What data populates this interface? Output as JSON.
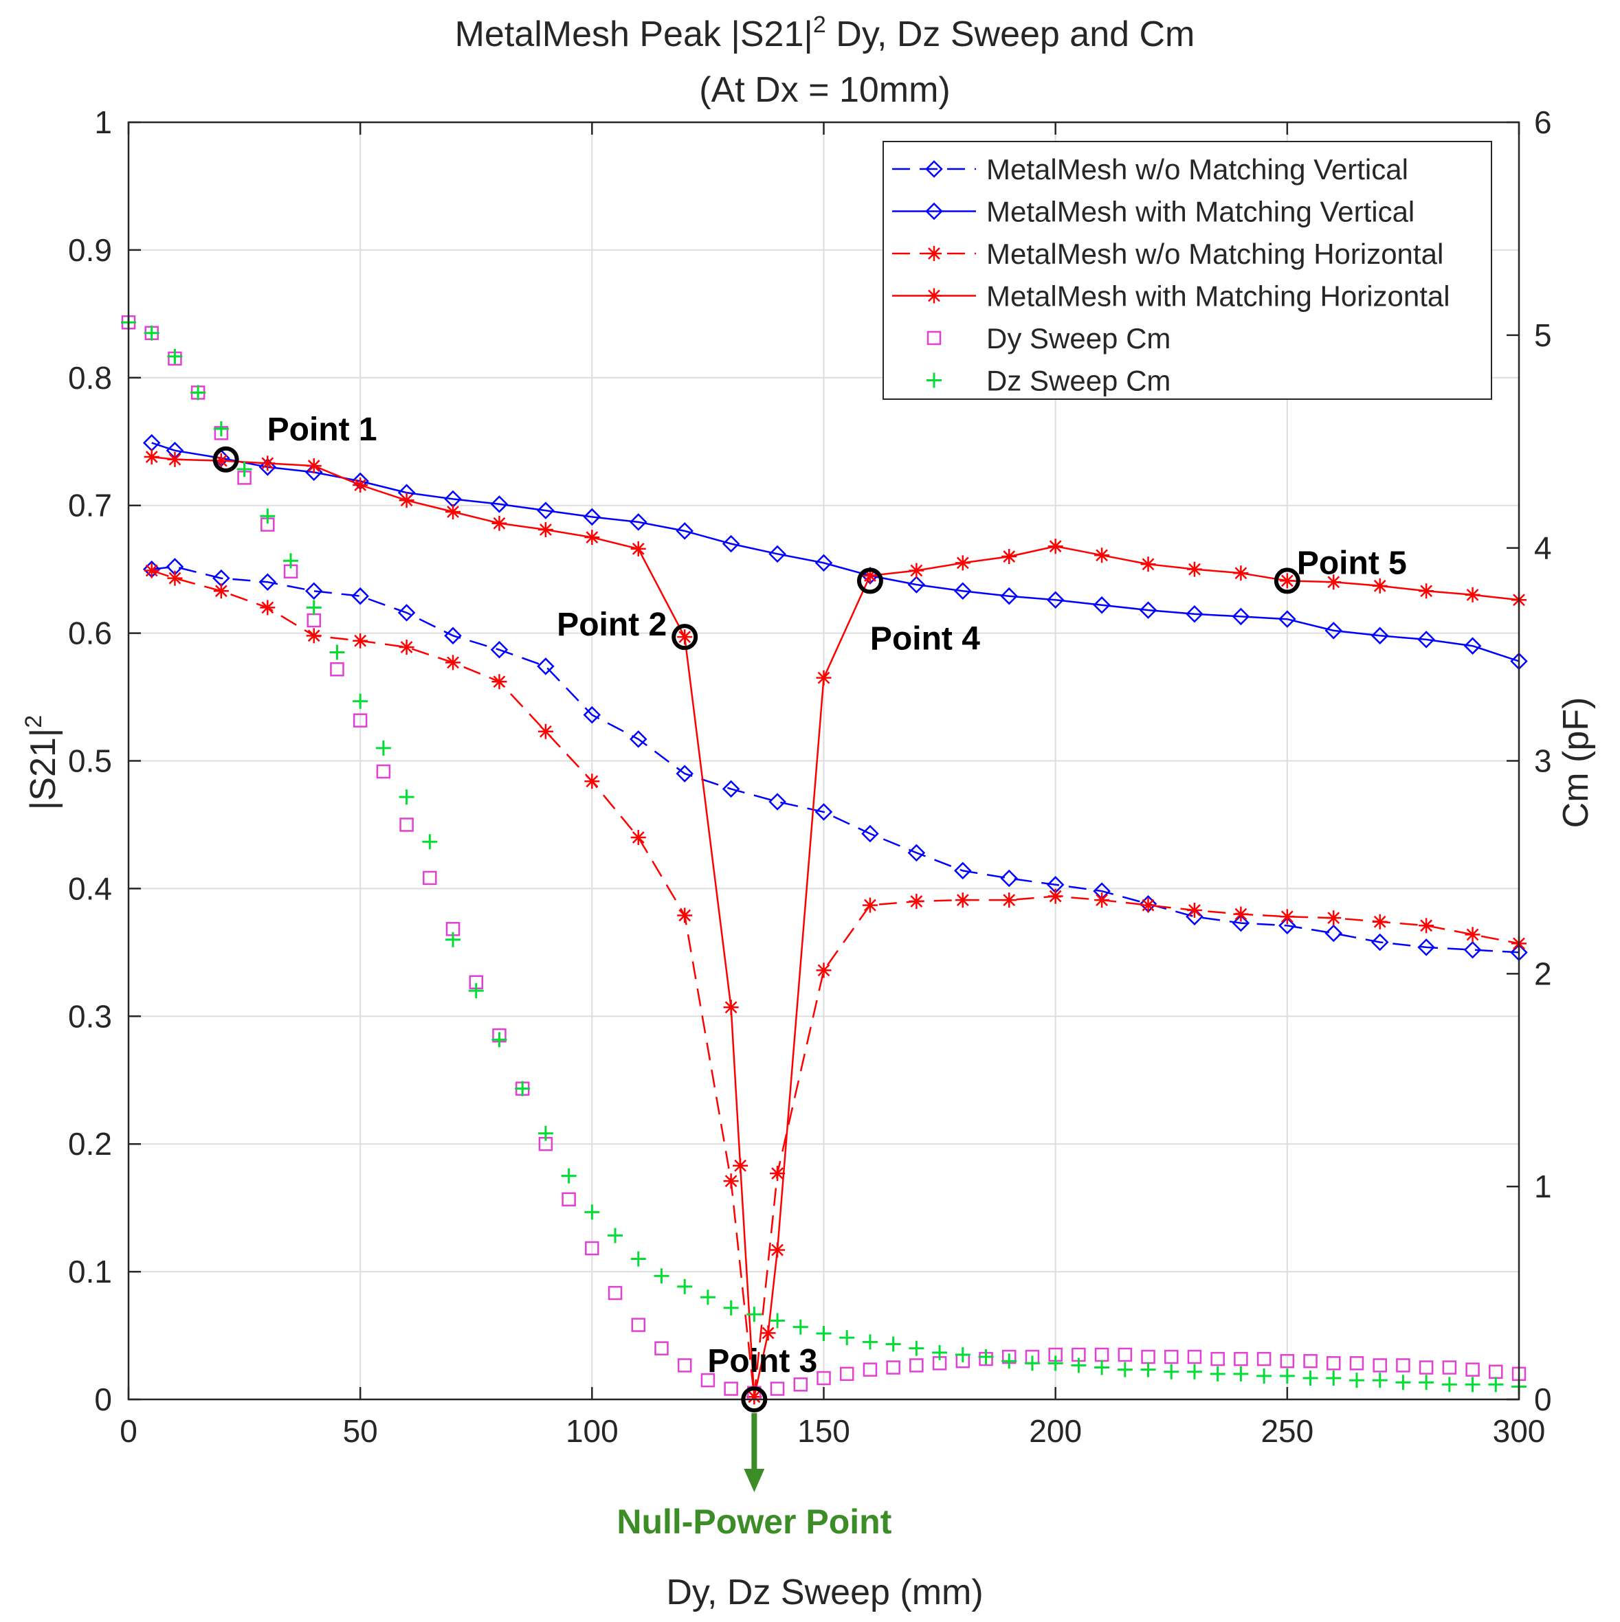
{
  "chart_data": {
    "type": "line",
    "title": {
      "pre": "MetalMesh Peak |S21|",
      "sup": "2",
      "post": " Dy, Dz Sweep and Cm"
    },
    "subtitle": "(At Dx = 10mm)",
    "xlabel": "Dy, Dz Sweep (mm)",
    "ylabel": {
      "main": "|S21|",
      "sup": "2"
    },
    "ylabel_right": "Cm (pF)",
    "xlim": [
      0,
      300
    ],
    "ylim": [
      0,
      1
    ],
    "ylim_right": [
      0,
      6
    ],
    "x_ticks": [
      0,
      50,
      100,
      150,
      200,
      250,
      300
    ],
    "y_ticks": [
      0,
      0.1,
      0.2,
      0.3,
      0.4,
      0.5,
      0.6,
      0.7,
      0.8,
      0.9,
      1
    ],
    "y_tick_labels": [
      "0",
      "0.1",
      "0.2",
      "0.3",
      "0.4",
      "0.5",
      "0.6",
      "0.7",
      "0.8",
      "0.9",
      "1"
    ],
    "y_right_ticks": [
      0,
      1,
      2,
      3,
      4,
      5,
      6
    ],
    "grid": true,
    "legend_position": "top-right",
    "series": [
      {
        "name": "MetalMesh w/o Matching Vertical",
        "axis": "left",
        "color": "#0000ff",
        "style": "dashed",
        "marker": "diamond",
        "x": [
          5,
          10,
          20,
          30,
          40,
          50,
          60,
          70,
          80,
          90,
          100,
          110,
          120,
          130,
          140,
          150,
          160,
          170,
          180,
          190,
          200,
          210,
          220,
          230,
          240,
          250,
          260,
          270,
          280,
          290,
          300
        ],
        "y": [
          0.65,
          0.652,
          0.643,
          0.64,
          0.633,
          0.629,
          0.616,
          0.598,
          0.587,
          0.574,
          0.536,
          0.517,
          0.49,
          0.478,
          0.468,
          0.46,
          0.443,
          0.428,
          0.414,
          0.408,
          0.403,
          0.398,
          0.388,
          0.378,
          0.373,
          0.371,
          0.365,
          0.358,
          0.354,
          0.352,
          0.35
        ]
      },
      {
        "name": "MetalMesh with Matching Vertical",
        "axis": "left",
        "color": "#0000ff",
        "style": "solid",
        "marker": "diamond",
        "x": [
          5,
          10,
          20,
          30,
          40,
          50,
          60,
          70,
          80,
          90,
          100,
          110,
          120,
          130,
          140,
          150,
          160,
          170,
          180,
          190,
          200,
          210,
          220,
          230,
          240,
          250,
          260,
          270,
          280,
          290,
          300
        ],
        "y": [
          0.749,
          0.743,
          0.737,
          0.73,
          0.726,
          0.719,
          0.71,
          0.705,
          0.701,
          0.696,
          0.691,
          0.687,
          0.68,
          0.67,
          0.662,
          0.655,
          0.645,
          0.638,
          0.633,
          0.629,
          0.626,
          0.622,
          0.618,
          0.615,
          0.613,
          0.611,
          0.602,
          0.598,
          0.595,
          0.59,
          0.578
        ]
      },
      {
        "name": "MetalMesh w/o Matching Horizontal",
        "axis": "left",
        "color": "#ff0000",
        "style": "dashed",
        "marker": "asterisk",
        "x": [
          5,
          10,
          20,
          30,
          40,
          50,
          60,
          70,
          80,
          90,
          100,
          110,
          120,
          130,
          135,
          140,
          150,
          160,
          170,
          180,
          190,
          200,
          210,
          220,
          230,
          240,
          250,
          260,
          270,
          280,
          290,
          300
        ],
        "y": [
          0.649,
          0.643,
          0.633,
          0.62,
          0.598,
          0.594,
          0.589,
          0.577,
          0.562,
          0.523,
          0.484,
          0.44,
          0.379,
          0.171,
          0.002,
          0.177,
          0.336,
          0.387,
          0.39,
          0.391,
          0.391,
          0.394,
          0.391,
          0.387,
          0.383,
          0.38,
          0.378,
          0.377,
          0.374,
          0.371,
          0.364,
          0.357
        ]
      },
      {
        "name": "MetalMesh with Matching Horizontal",
        "axis": "left",
        "color": "#ff0000",
        "style": "solid",
        "marker": "asterisk",
        "x": [
          5,
          10,
          20,
          30,
          40,
          50,
          60,
          70,
          80,
          90,
          100,
          110,
          120,
          130,
          132,
          135,
          138,
          140,
          150,
          160,
          170,
          180,
          190,
          200,
          210,
          220,
          230,
          240,
          250,
          260,
          270,
          280,
          290,
          300
        ],
        "y": [
          0.738,
          0.736,
          0.735,
          0.733,
          0.731,
          0.716,
          0.704,
          0.695,
          0.686,
          0.681,
          0.675,
          0.666,
          0.597,
          0.307,
          0.183,
          0.002,
          0.052,
          0.117,
          0.565,
          0.645,
          0.649,
          0.655,
          0.66,
          0.668,
          0.661,
          0.654,
          0.65,
          0.647,
          0.641,
          0.64,
          0.637,
          0.633,
          0.63,
          0.626
        ]
      },
      {
        "name": "Dy Sweep Cm",
        "axis": "right",
        "color": "#e23fd4",
        "style": "none",
        "marker": "square",
        "x": [
          0,
          5,
          10,
          15,
          20,
          25,
          30,
          35,
          40,
          45,
          50,
          55,
          60,
          65,
          70,
          75,
          80,
          85,
          90,
          95,
          100,
          105,
          110,
          115,
          120,
          125,
          130,
          135,
          140,
          145,
          150,
          155,
          160,
          165,
          170,
          175,
          180,
          185,
          190,
          195,
          200,
          205,
          210,
          215,
          220,
          225,
          230,
          235,
          240,
          245,
          250,
          255,
          260,
          265,
          270,
          275,
          280,
          285,
          290,
          295,
          300
        ],
        "y": [
          5.06,
          5.01,
          4.89,
          4.73,
          4.54,
          4.33,
          4.11,
          3.89,
          3.66,
          3.43,
          3.19,
          2.95,
          2.7,
          2.45,
          2.21,
          1.96,
          1.71,
          1.46,
          1.2,
          0.94,
          0.71,
          0.5,
          0.35,
          0.24,
          0.16,
          0.09,
          0.05,
          0.03,
          0.05,
          0.07,
          0.1,
          0.12,
          0.14,
          0.15,
          0.16,
          0.17,
          0.18,
          0.19,
          0.2,
          0.2,
          0.21,
          0.21,
          0.21,
          0.21,
          0.2,
          0.2,
          0.2,
          0.19,
          0.19,
          0.19,
          0.18,
          0.18,
          0.17,
          0.17,
          0.16,
          0.16,
          0.15,
          0.15,
          0.14,
          0.13,
          0.12
        ]
      },
      {
        "name": "Dz Sweep Cm",
        "axis": "right",
        "color": "#00dd33",
        "style": "none",
        "marker": "plus",
        "x": [
          0,
          5,
          10,
          15,
          20,
          25,
          30,
          35,
          40,
          45,
          50,
          55,
          60,
          65,
          70,
          75,
          80,
          85,
          90,
          95,
          100,
          105,
          110,
          115,
          120,
          125,
          130,
          135,
          140,
          145,
          150,
          155,
          160,
          165,
          170,
          175,
          180,
          185,
          190,
          195,
          200,
          205,
          210,
          215,
          220,
          225,
          230,
          235,
          240,
          245,
          250,
          255,
          260,
          265,
          270,
          275,
          280,
          285,
          290,
          295,
          300
        ],
        "y": [
          5.06,
          5.01,
          4.9,
          4.73,
          4.56,
          4.37,
          4.15,
          3.94,
          3.72,
          3.51,
          3.28,
          3.06,
          2.83,
          2.62,
          2.16,
          1.92,
          1.69,
          1.46,
          1.25,
          1.05,
          0.88,
          0.77,
          0.66,
          0.58,
          0.53,
          0.48,
          0.43,
          0.4,
          0.37,
          0.34,
          0.31,
          0.29,
          0.27,
          0.26,
          0.24,
          0.22,
          0.21,
          0.2,
          0.18,
          0.17,
          0.17,
          0.16,
          0.15,
          0.14,
          0.14,
          0.13,
          0.13,
          0.12,
          0.12,
          0.11,
          0.11,
          0.1,
          0.1,
          0.09,
          0.09,
          0.08,
          0.08,
          0.07,
          0.07,
          0.07,
          0.06
        ]
      }
    ],
    "annotations": [
      {
        "text": "Point 1",
        "x": 21,
        "y": 0.736
      },
      {
        "text": "Point 2",
        "x": 120,
        "y": 0.597
      },
      {
        "text": "Point 3",
        "x": 135,
        "y": 0.0
      },
      {
        "text": "Point 4",
        "x": 160,
        "y": 0.641
      },
      {
        "text": "Point 5",
        "x": 250,
        "y": 0.641
      }
    ],
    "arrow_label": "Null-Power Point"
  },
  "colors": {
    "arrow": "#3c8c28",
    "grid": "#dddddd",
    "axis": "#262626"
  }
}
